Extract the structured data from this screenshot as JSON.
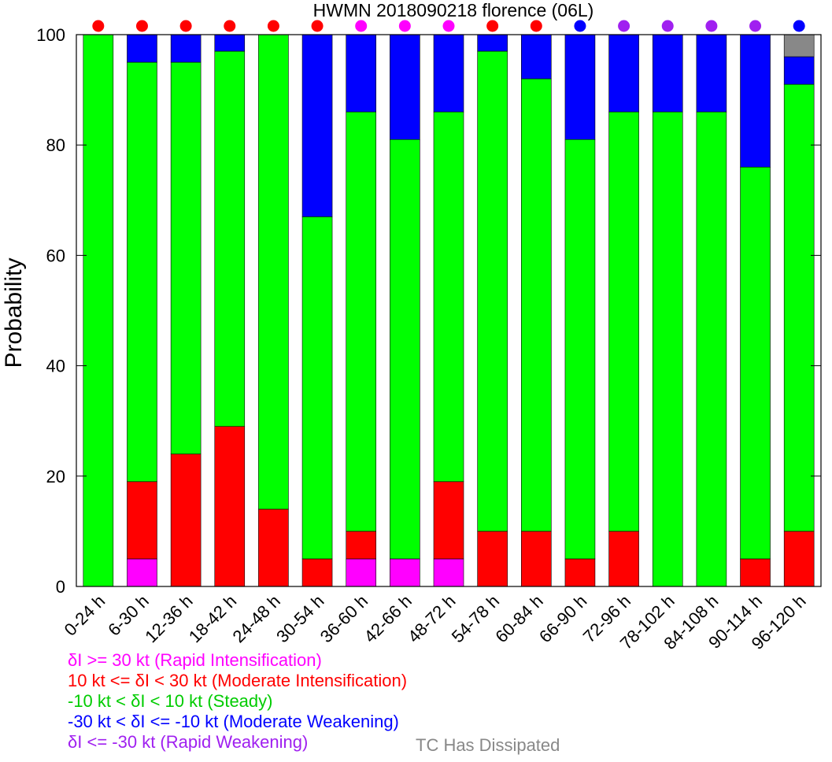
{
  "chart_data": {
    "type": "bar",
    "stacked": true,
    "title": "HWMN 2018090218 florence (06L)",
    "ylabel": "Probability",
    "xlabel": "",
    "ylim": [
      0,
      100
    ],
    "yticks": [
      0,
      20,
      40,
      60,
      80,
      100
    ],
    "categories": [
      "0-24 h",
      "6-30 h",
      "12-36 h",
      "18-42 h",
      "24-48 h",
      "30-54 h",
      "36-60 h",
      "42-66 h",
      "48-72 h",
      "54-78 h",
      "60-84 h",
      "66-90 h",
      "72-96 h",
      "78-102 h",
      "84-108 h",
      "90-114 h",
      "96-120 h"
    ],
    "series": [
      {
        "key": "ri",
        "color": "#ff00ff",
        "values": [
          0,
          5,
          0,
          0,
          0,
          0,
          5,
          5,
          5,
          0,
          0,
          0,
          0,
          0,
          0,
          0,
          0
        ]
      },
      {
        "key": "mi",
        "color": "#ff0000",
        "values": [
          0,
          14,
          24,
          29,
          14,
          5,
          5,
          0,
          14,
          10,
          10,
          5,
          10,
          0,
          0,
          5,
          10
        ]
      },
      {
        "key": "steady",
        "color": "#00ff00",
        "values": [
          100,
          76,
          71,
          68,
          86,
          62,
          76,
          76,
          67,
          87,
          82,
          76,
          76,
          86,
          86,
          71,
          81
        ]
      },
      {
        "key": "mw",
        "color": "#0000ff",
        "values": [
          0,
          5,
          5,
          3,
          0,
          33,
          14,
          19,
          14,
          3,
          8,
          19,
          14,
          14,
          14,
          24,
          5
        ]
      },
      {
        "key": "rw",
        "color": "#a020f0",
        "values": [
          0,
          0,
          0,
          0,
          0,
          0,
          0,
          0,
          0,
          0,
          0,
          0,
          0,
          0,
          0,
          0,
          0
        ]
      },
      {
        "key": "dissipated",
        "color": "#888888",
        "values": [
          0,
          0,
          0,
          0,
          0,
          0,
          0,
          0,
          0,
          0,
          0,
          0,
          0,
          0,
          0,
          0,
          4
        ]
      }
    ],
    "top_markers": [
      "#ff0000",
      "#ff0000",
      "#ff0000",
      "#ff0000",
      "#ff0000",
      "#ff0000",
      "#ff00ff",
      "#ff00ff",
      "#ff00ff",
      "#ff0000",
      "#ff0000",
      "#0000ff",
      "#a020f0",
      "#a020f0",
      "#a020f0",
      "#a020f0",
      "#0000ff"
    ],
    "grid": false
  },
  "legend": {
    "ri": {
      "label": "δI >= 30 kt (Rapid Intensification)",
      "color": "#ff00ff"
    },
    "mi": {
      "label": "10 kt <= δI < 30 kt (Moderate Intensification)",
      "color": "#ff0000"
    },
    "steady": {
      "label": "-10 kt < δI < 10 kt (Steady)",
      "color": "#00cc00"
    },
    "mw": {
      "label": "-30 kt < δI <= -10 kt (Moderate Weakening)",
      "color": "#0000ff"
    },
    "rw": {
      "label": "δI <= -30 kt (Rapid Weakening)",
      "color": "#a020f0"
    },
    "dissipated": {
      "label": "TC Has Dissipated",
      "color": "#888888"
    }
  }
}
